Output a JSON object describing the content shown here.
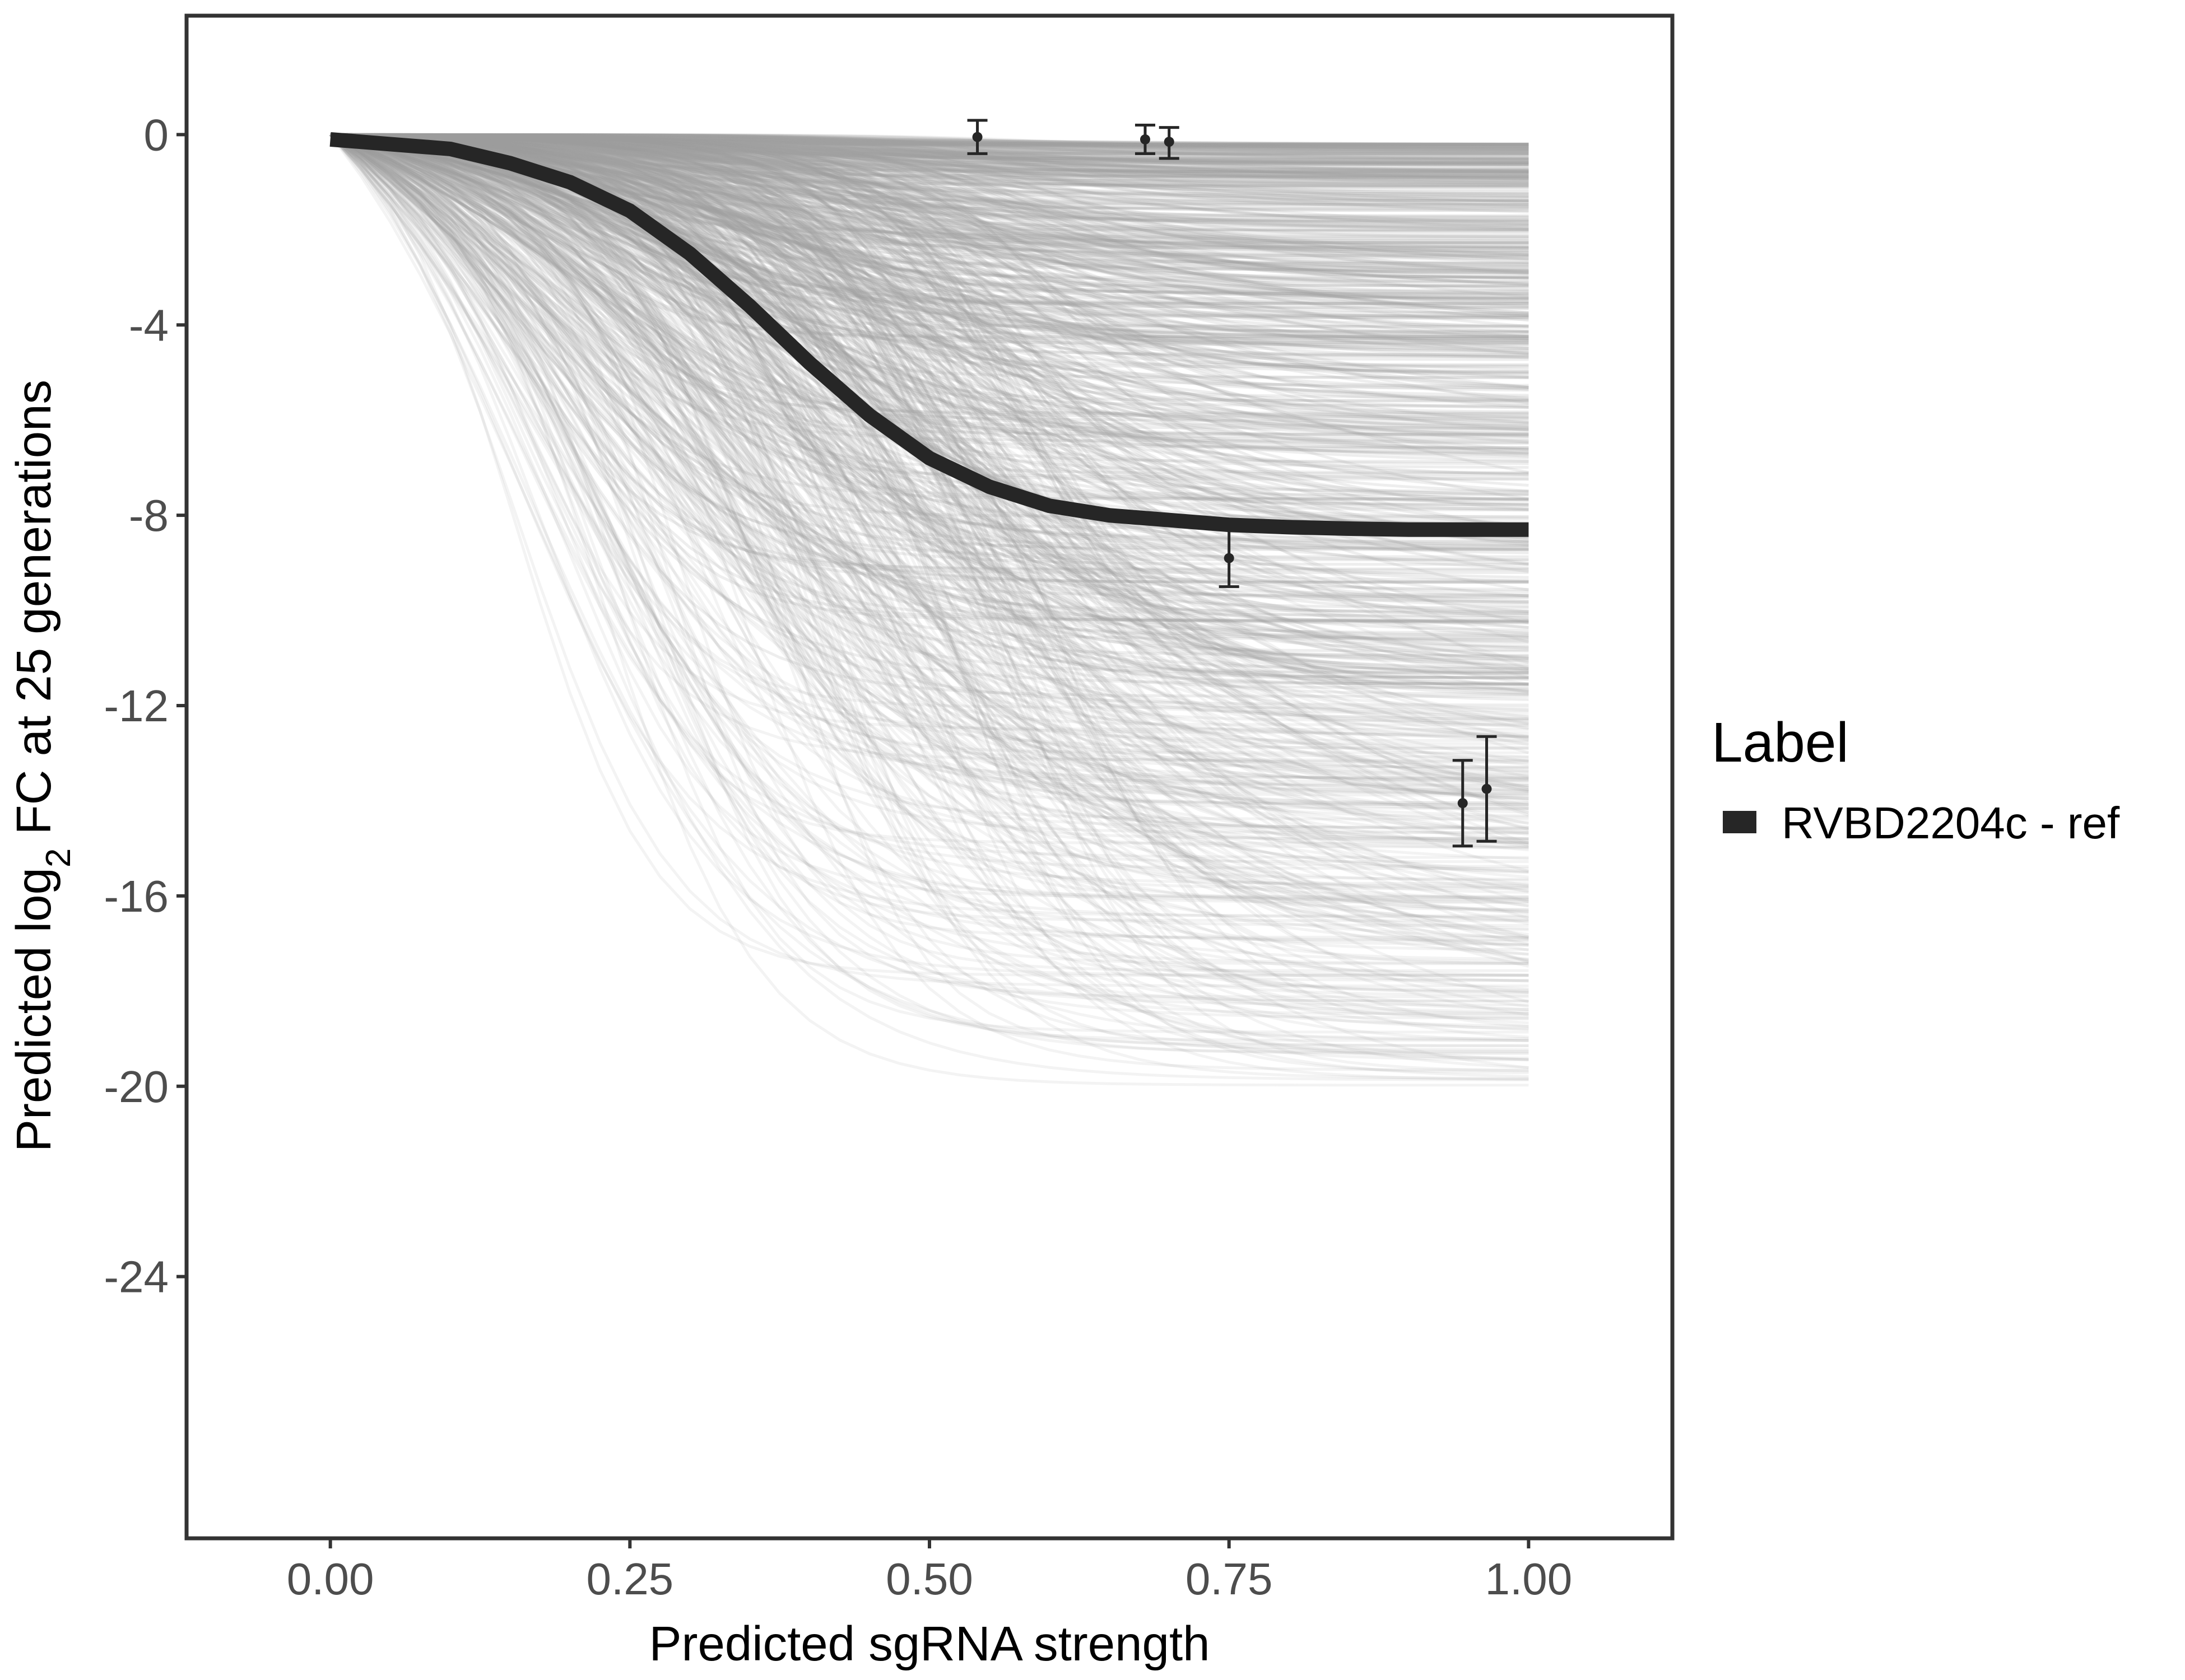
{
  "chart_data": {
    "type": "line",
    "xlabel": "Predicted sgRNA strength",
    "ylabel_parts": [
      "Predicted  log",
      "2",
      " FC at 25 generations"
    ],
    "xlim": [
      -0.12,
      1.12
    ],
    "ylim": [
      -29.5,
      2.5
    ],
    "x_ticks": [
      0.0,
      0.25,
      0.5,
      0.75,
      1.0
    ],
    "x_tick_labels": [
      "0.00",
      "0.25",
      "0.50",
      "0.75",
      "1.00"
    ],
    "y_ticks": [
      0,
      -4,
      -8,
      -12,
      -16,
      -20,
      -24
    ],
    "y_tick_labels": [
      "0",
      "-4",
      "-8",
      "-12",
      "-16",
      "-20",
      "-24"
    ],
    "grid": false,
    "background_curves": {
      "description_color": "#9e9e9e",
      "count": 900,
      "x_range": [
        0,
        1
      ],
      "final_value_range": [
        -20,
        -0.2
      ],
      "midpoint_range": [
        0.15,
        0.6
      ]
    },
    "highlighted_series": {
      "name": "RVBD2204c - ref",
      "color": "#262626",
      "x": [
        0.0,
        0.05,
        0.1,
        0.15,
        0.2,
        0.25,
        0.3,
        0.35,
        0.4,
        0.45,
        0.5,
        0.55,
        0.6,
        0.65,
        0.7,
        0.75,
        0.8,
        0.85,
        0.9,
        0.95,
        1.0
      ],
      "y": [
        -0.1,
        -0.2,
        -0.3,
        -0.6,
        -1.0,
        -1.6,
        -2.5,
        -3.6,
        -4.8,
        -5.9,
        -6.8,
        -7.4,
        -7.8,
        -8.0,
        -8.1,
        -8.2,
        -8.25,
        -8.28,
        -8.3,
        -8.3,
        -8.3
      ]
    },
    "observations": {
      "color": "#262626",
      "points": [
        {
          "x": 0.54,
          "y": -0.05,
          "ymin": -0.4,
          "ymax": 0.3
        },
        {
          "x": 0.68,
          "y": -0.1,
          "ymin": -0.4,
          "ymax": 0.2
        },
        {
          "x": 0.7,
          "y": -0.15,
          "ymin": -0.5,
          "ymax": 0.15
        },
        {
          "x": 0.75,
          "y": -8.9,
          "ymin": -9.5,
          "ymax": -8.3
        },
        {
          "x": 0.945,
          "y": -14.05,
          "ymin": -14.95,
          "ymax": -13.15
        },
        {
          "x": 0.965,
          "y": -13.75,
          "ymin": -14.85,
          "ymax": -12.65
        }
      ]
    },
    "legend": {
      "title": "Label",
      "position": "right",
      "entries": [
        {
          "label": "RVBD2204c - ref",
          "color": "#262626"
        }
      ]
    }
  }
}
